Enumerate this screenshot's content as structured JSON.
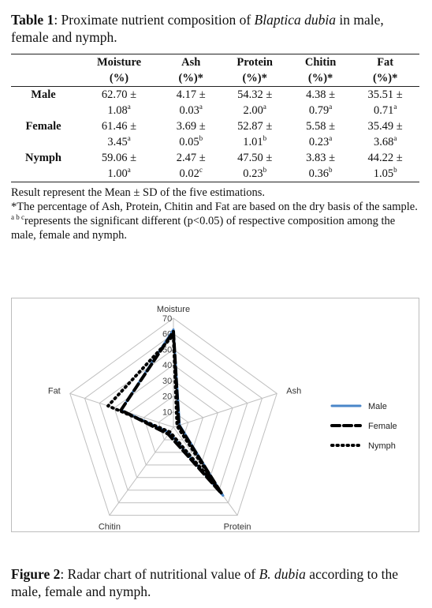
{
  "table": {
    "label": "Table 1",
    "caption_text": ": Proximate nutrient composition of ",
    "caption_italic": "Blaptica dubia",
    "caption_end": " in male, female and nymph.",
    "headers": [
      {
        "line1": "Moisture",
        "line2": "(%)"
      },
      {
        "line1": "Ash",
        "line2": "(%)*"
      },
      {
        "line1": "Protein",
        "line2": "(%)*"
      },
      {
        "line1": "Chitin",
        "line2": "(%)*"
      },
      {
        "line1": "Fat",
        "line2": "(%)*"
      }
    ],
    "rows": [
      {
        "label": "Male",
        "cells": [
          {
            "mean": "62.70 ±",
            "sd": "1.08",
            "sup": "a"
          },
          {
            "mean": "4.17 ±",
            "sd": "0.03",
            "sup": "a"
          },
          {
            "mean": "54.32 ±",
            "sd": "2.00",
            "sup": "a"
          },
          {
            "mean": "4.38 ±",
            "sd": "0.79",
            "sup": "a"
          },
          {
            "mean": "35.51 ±",
            "sd": "0.71",
            "sup": "a"
          }
        ]
      },
      {
        "label": "Female",
        "cells": [
          {
            "mean": "61.46 ±",
            "sd": "3.45",
            "sup": "a"
          },
          {
            "mean": "3.69 ±",
            "sd": "0.05",
            "sup": "b"
          },
          {
            "mean": "52.87 ±",
            "sd": "1.01",
            "sup": "b"
          },
          {
            "mean": "5.58 ±",
            "sd": "0.23",
            "sup": "a"
          },
          {
            "mean": "35.49 ±",
            "sd": "3.68",
            "sup": "a"
          }
        ]
      },
      {
        "label": "Nymph",
        "cells": [
          {
            "mean": "59.06 ±",
            "sd": "1.00",
            "sup": "a"
          },
          {
            "mean": "2.47 ±",
            "sd": "0.02",
            "sup": "c"
          },
          {
            "mean": "47.50 ±",
            "sd": "0.23",
            "sup": "b"
          },
          {
            "mean": "3.83 ±",
            "sd": "0.36",
            "sup": "b"
          },
          {
            "mean": "44.22 ±",
            "sd": "1.05",
            "sup": "b"
          }
        ]
      }
    ],
    "notes": {
      "line1": "Result represent the Mean ± SD of the five estimations.",
      "line2": "*The percentage of Ash, Protein, Chitin and Fat are based on the dry basis of the sample.",
      "line3_sup": "a b c",
      "line3": "represents the significant different (p<0.05) of respective composition among the male, female and nymph."
    }
  },
  "figure": {
    "label": "Figure 2",
    "caption_text": ": Radar chart of nutritional value of ",
    "caption_italic": "B. dubia",
    "caption_end": " according to the male, female and nymph."
  },
  "chart_data": {
    "type": "radar",
    "axes": [
      "Moisture",
      "Ash",
      "Protein",
      "Chitin",
      "Fat"
    ],
    "ticks": [
      10,
      20,
      30,
      40,
      50,
      60,
      70
    ],
    "range": [
      0,
      70
    ],
    "grid": true,
    "legend_position": "right",
    "series": [
      {
        "name": "Male",
        "values": [
          62.7,
          4.17,
          54.32,
          4.38,
          35.51
        ],
        "color": "#4a86c8",
        "style": "solid"
      },
      {
        "name": "Female",
        "values": [
          61.46,
          3.69,
          52.87,
          5.58,
          35.49
        ],
        "color": "#000000",
        "style": "dashed"
      },
      {
        "name": "Nymph",
        "values": [
          59.06,
          2.47,
          47.5,
          3.83,
          44.22
        ],
        "color": "#000000",
        "style": "dotted"
      }
    ]
  }
}
